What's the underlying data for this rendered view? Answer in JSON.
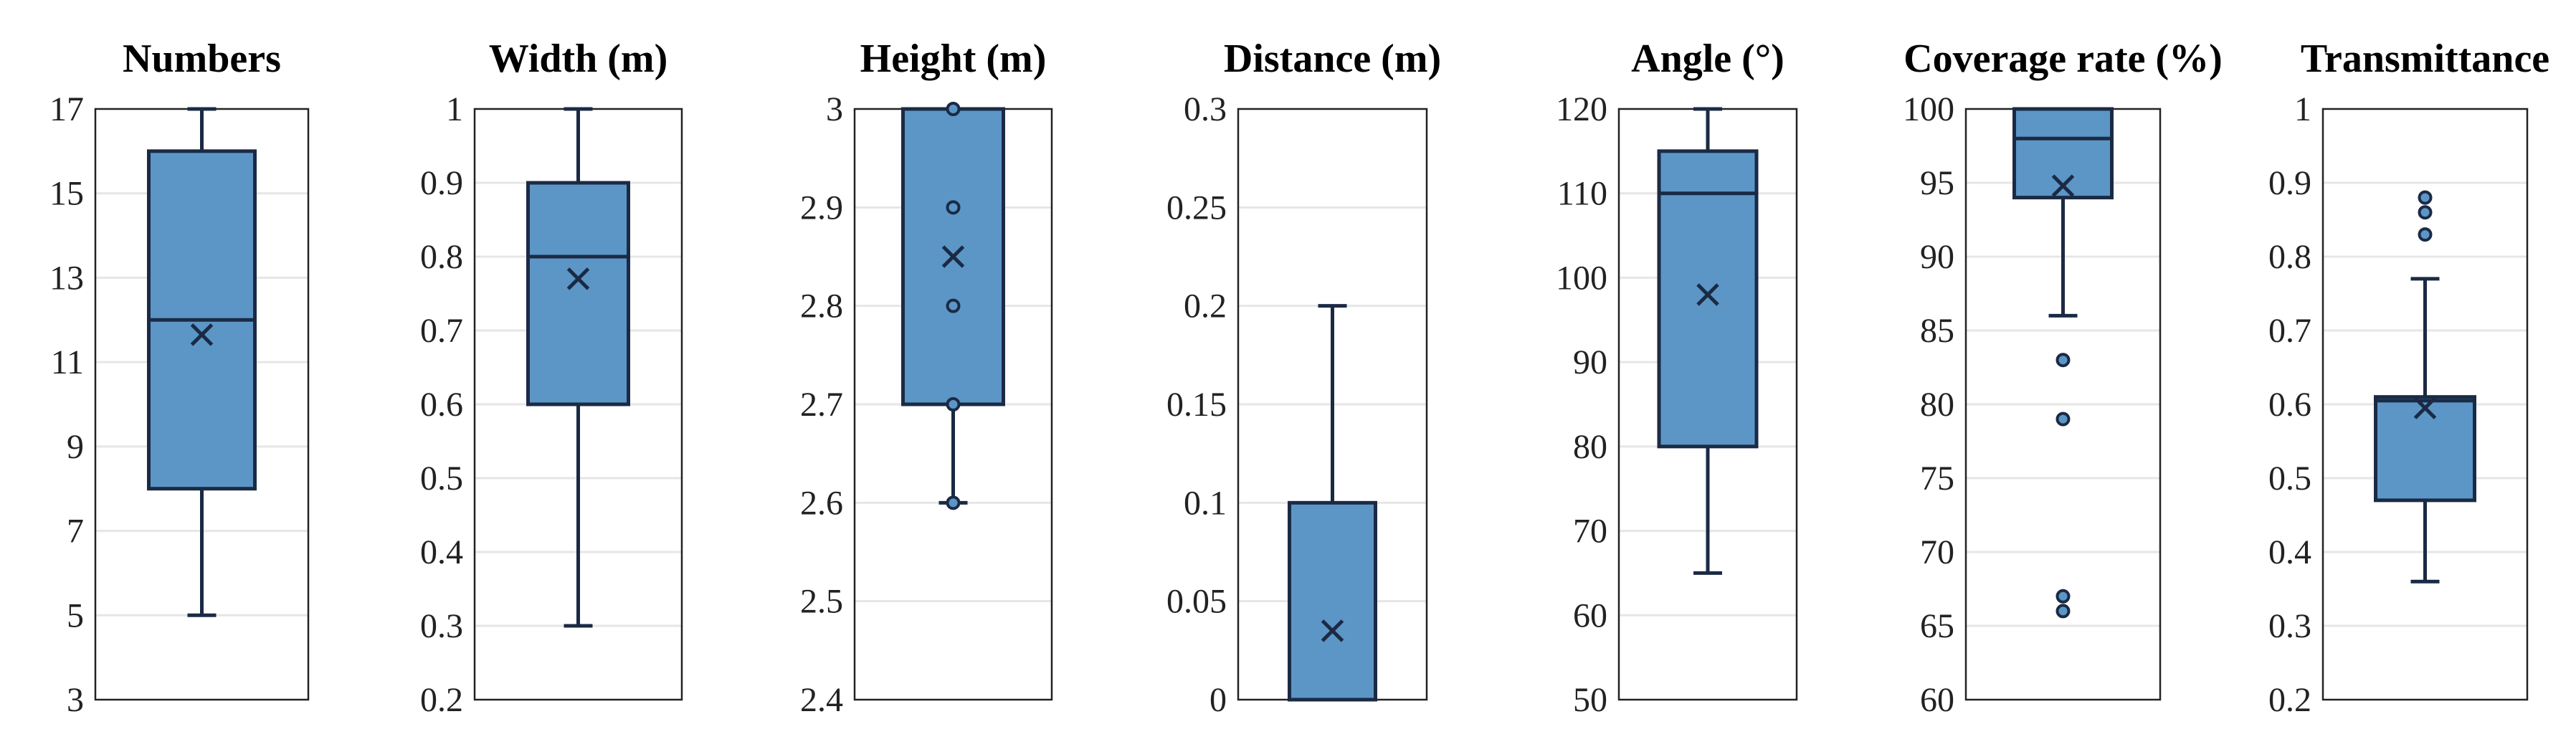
{
  "colors": {
    "box_fill": "#5b96c6",
    "box_stroke": "#1b2a44",
    "gridline": "#e6e6e6",
    "frame": "#222222",
    "background": "#ffffff"
  },
  "marker_icons": {
    "mean": "x-mark-icon",
    "outlier": "circle-outlier-icon"
  },
  "chart_data": [
    {
      "type": "box",
      "title": "Numbers",
      "ylim": [
        3,
        17
      ],
      "yticks": [
        3,
        5,
        7,
        9,
        11,
        13,
        15,
        17
      ],
      "ytick_labels": [
        "3",
        "5",
        "7",
        "9",
        "11",
        "13",
        "15",
        "17"
      ],
      "box": {
        "whisker_low": 5,
        "q1": 8,
        "median": 12,
        "q3": 16,
        "whisker_high": 17,
        "mean": 11.65,
        "outliers": []
      }
    },
    {
      "type": "box",
      "title": "Width (m)",
      "ylim": [
        0.2,
        1.0
      ],
      "yticks": [
        0.2,
        0.3,
        0.4,
        0.5,
        0.6,
        0.7,
        0.8,
        0.9,
        1.0
      ],
      "ytick_labels": [
        "0.2",
        "0.3",
        "0.4",
        "0.5",
        "0.6",
        "0.7",
        "0.8",
        "0.9",
        "1"
      ],
      "box": {
        "whisker_low": 0.3,
        "q1": 0.6,
        "median": 0.8,
        "q3": 0.9,
        "whisker_high": 1.0,
        "mean": 0.77,
        "outliers": []
      }
    },
    {
      "type": "box",
      "title": "Height (m)",
      "ylim": [
        2.4,
        3.0
      ],
      "yticks": [
        2.4,
        2.5,
        2.6,
        2.7,
        2.8,
        2.9,
        3.0
      ],
      "ytick_labels": [
        "2.4",
        "2.5",
        "2.6",
        "2.7",
        "2.8",
        "2.9",
        "3"
      ],
      "box": {
        "whisker_low": 2.6,
        "q1": 2.7,
        "median": 3.0,
        "q3": 3.0,
        "whisker_high": 3.0,
        "mean": 2.85,
        "outliers": [
          2.6,
          2.7,
          2.8,
          2.9,
          3.0
        ]
      }
    },
    {
      "type": "box",
      "title": "Distance (m)",
      "ylim": [
        0,
        0.3
      ],
      "yticks": [
        0,
        0.05,
        0.1,
        0.15,
        0.2,
        0.25,
        0.3
      ],
      "ytick_labels": [
        "0",
        "0.05",
        "0.1",
        "0.15",
        "0.2",
        "0.25",
        "0.3"
      ],
      "box": {
        "whisker_low": 0,
        "q1": 0,
        "median": 0,
        "q3": 0.1,
        "whisker_high": 0.2,
        "mean": 0.035,
        "outliers": []
      }
    },
    {
      "type": "box",
      "title": "Angle (°)",
      "ylim": [
        50,
        120
      ],
      "yticks": [
        50,
        60,
        70,
        80,
        90,
        100,
        110,
        120
      ],
      "ytick_labels": [
        "50",
        "60",
        "70",
        "80",
        "90",
        "100",
        "110",
        "120"
      ],
      "box": {
        "whisker_low": 65,
        "q1": 80,
        "median": 110,
        "q3": 115,
        "whisker_high": 120,
        "mean": 98,
        "outliers": []
      }
    },
    {
      "type": "box",
      "title": "Coverage rate (%)",
      "ylim": [
        60,
        100
      ],
      "yticks": [
        60,
        65,
        70,
        75,
        80,
        85,
        90,
        95,
        100
      ],
      "ytick_labels": [
        "60",
        "65",
        "70",
        "75",
        "80",
        "85",
        "90",
        "95",
        "100"
      ],
      "box": {
        "whisker_low": 86,
        "q1": 94,
        "median": 98,
        "q3": 100,
        "whisker_high": 100,
        "mean": 94.8,
        "outliers": [
          83,
          79,
          67,
          66
        ]
      }
    },
    {
      "type": "box",
      "title": "Transmittance",
      "ylim": [
        0.2,
        1.0
      ],
      "yticks": [
        0.2,
        0.3,
        0.4,
        0.5,
        0.6,
        0.7,
        0.8,
        0.9,
        1.0
      ],
      "ytick_labels": [
        "0.2",
        "0.3",
        "0.4",
        "0.5",
        "0.6",
        "0.7",
        "0.8",
        "0.9",
        "1"
      ],
      "box": {
        "whisker_low": 0.36,
        "q1": 0.47,
        "median": 0.605,
        "q3": 0.61,
        "whisker_high": 0.77,
        "mean": 0.595,
        "outliers": [
          0.83,
          0.86,
          0.88
        ]
      }
    }
  ]
}
